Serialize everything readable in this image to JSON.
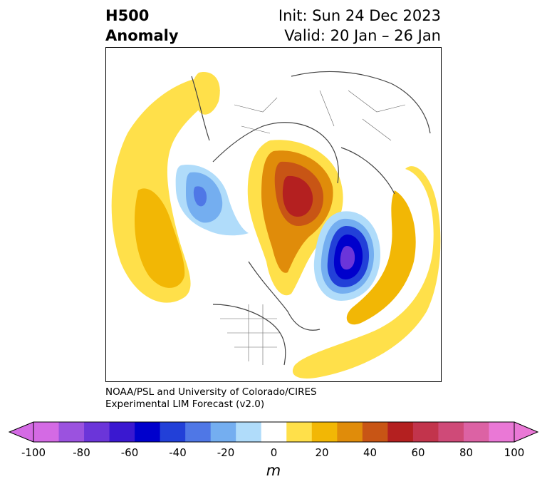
{
  "header": {
    "title_line1": "H500",
    "title_line2": "Anomaly",
    "init_label": "Init: Sun 24 Dec 2023",
    "valid_label": "Valid: 20 Jan – 26 Jan"
  },
  "credit": {
    "line1": "NOAA/PSL and University of Colorado/CIRES",
    "line2": "Experimental LIM Forecast (v2.0)"
  },
  "colorbar": {
    "unit": "m",
    "ticks": [
      "-100",
      "-80",
      "-60",
      "-40",
      "-20",
      "0",
      "20",
      "40",
      "60",
      "80",
      "100"
    ],
    "colors": [
      "#d46ae4",
      "#9b52df",
      "#6b35d9",
      "#3a18d0",
      "#0000cc",
      "#2240d8",
      "#4f77e6",
      "#74aef0",
      "#b0dcfa",
      "#ffffff",
      "#ffe04a",
      "#f2b705",
      "#e08c0a",
      "#c85515",
      "#b42020",
      "#c2344c",
      "#cf4a78",
      "#dc62a4",
      "#ea78d6"
    ],
    "extend_low": "#d46ae4",
    "extend_high": "#ea78d6"
  }
}
